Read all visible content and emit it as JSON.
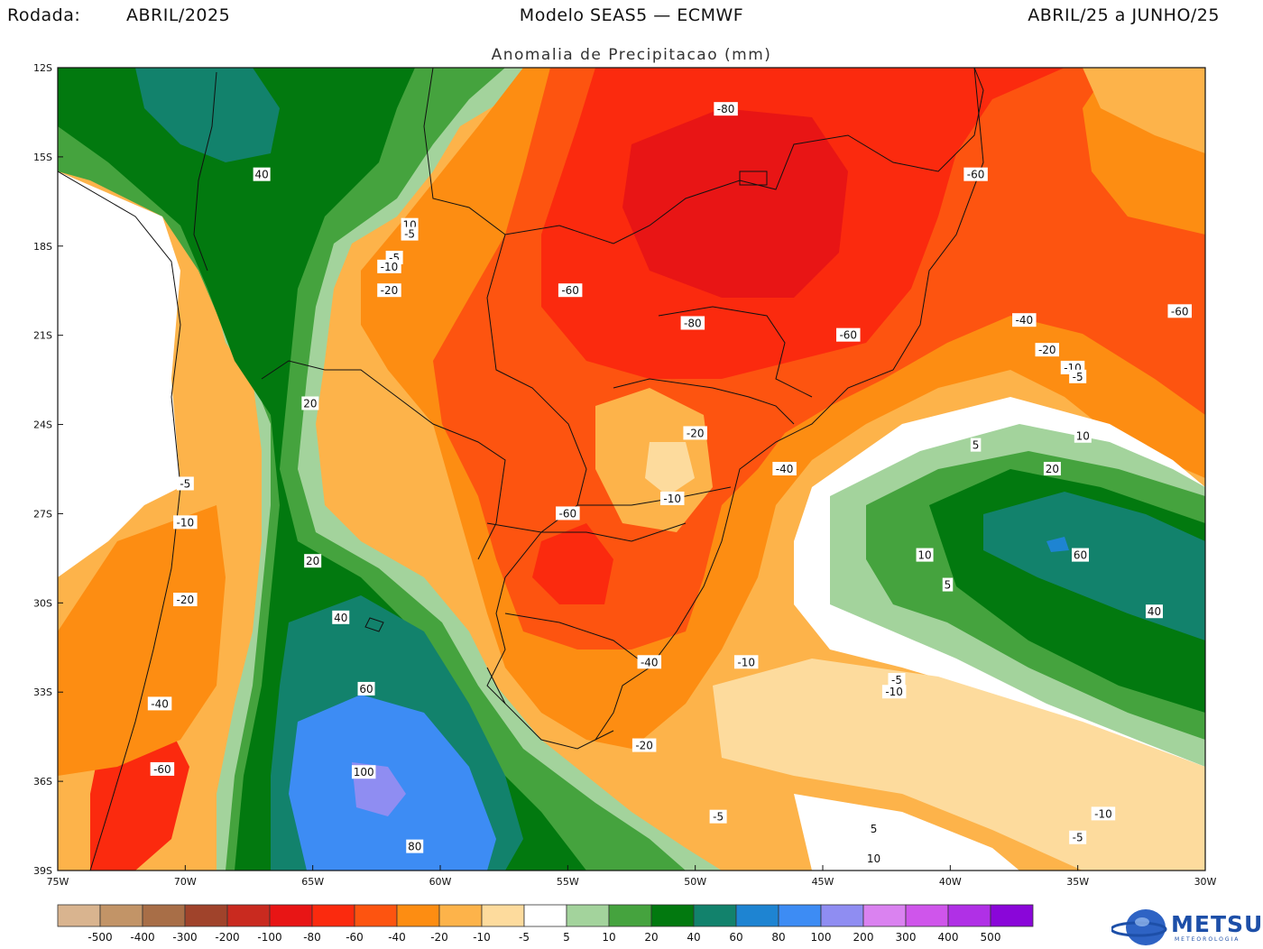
{
  "header": {
    "left_label": "Rodada:",
    "left_value": "ABRIL/2025",
    "center": "Modelo SEAS5 — ECMWF",
    "right": "ABRIL/25 a JUNHO/25",
    "subtitle": "Anomalia de Precipitacao (mm)"
  },
  "map": {
    "lon_range": [
      -75,
      -30
    ],
    "lat_range": [
      -39,
      -12
    ],
    "lon_ticks": [
      {
        "value": -75,
        "label": "75W"
      },
      {
        "value": -70,
        "label": "70W"
      },
      {
        "value": -65,
        "label": "65W"
      },
      {
        "value": -60,
        "label": "60W"
      },
      {
        "value": -55,
        "label": "55W"
      },
      {
        "value": -50,
        "label": "50W"
      },
      {
        "value": -45,
        "label": "45W"
      },
      {
        "value": -40,
        "label": "40W"
      },
      {
        "value": -35,
        "label": "35W"
      },
      {
        "value": -30,
        "label": "30W"
      }
    ],
    "lat_ticks": [
      {
        "value": -12,
        "label": "12S"
      },
      {
        "value": -15,
        "label": "15S"
      },
      {
        "value": -18,
        "label": "18S"
      },
      {
        "value": -21,
        "label": "21S"
      },
      {
        "value": -24,
        "label": "24S"
      },
      {
        "value": -27,
        "label": "27S"
      },
      {
        "value": -30,
        "label": "30S"
      },
      {
        "value": -33,
        "label": "33S"
      },
      {
        "value": -36,
        "label": "36S"
      },
      {
        "value": -39,
        "label": "39S"
      }
    ],
    "contour_labels": [
      {
        "text": "-80",
        "lon": -48.8,
        "lat": -13.4
      },
      {
        "text": "-60",
        "lon": -39.0,
        "lat": -15.6
      },
      {
        "text": "40",
        "lon": -67.0,
        "lat": -15.6
      },
      {
        "text": "10",
        "lon": -61.2,
        "lat": -17.3
      },
      {
        "text": "-5",
        "lon": -61.2,
        "lat": -17.6
      },
      {
        "text": "-5",
        "lon": -61.8,
        "lat": -18.4
      },
      {
        "text": "-10",
        "lon": -62.0,
        "lat": -18.7
      },
      {
        "text": "-20",
        "lon": -62.0,
        "lat": -19.5
      },
      {
        "text": "-60",
        "lon": -54.9,
        "lat": -19.5
      },
      {
        "text": "-80",
        "lon": -50.1,
        "lat": -20.6
      },
      {
        "text": "-60",
        "lon": -44.0,
        "lat": -21.0
      },
      {
        "text": "-40",
        "lon": -37.1,
        "lat": -20.5
      },
      {
        "text": "-60",
        "lon": -31.0,
        "lat": -20.2
      },
      {
        "text": "-20",
        "lon": -36.2,
        "lat": -21.5
      },
      {
        "text": "-10",
        "lon": -35.2,
        "lat": -22.1
      },
      {
        "text": "-5",
        "lon": -35.0,
        "lat": -22.4
      },
      {
        "text": "20",
        "lon": -65.1,
        "lat": -23.3
      },
      {
        "text": "-20",
        "lon": -50.0,
        "lat": -24.3
      },
      {
        "text": "10",
        "lon": -34.8,
        "lat": -24.4
      },
      {
        "text": "5",
        "lon": -39.0,
        "lat": -24.7
      },
      {
        "text": "-40",
        "lon": -46.5,
        "lat": -25.5
      },
      {
        "text": "20",
        "lon": -36.0,
        "lat": -25.5
      },
      {
        "text": "-5",
        "lon": -70.0,
        "lat": -26.0
      },
      {
        "text": "-10",
        "lon": -50.9,
        "lat": -26.5
      },
      {
        "text": "-60",
        "lon": -55.0,
        "lat": -27.0
      },
      {
        "text": "-10",
        "lon": -70.0,
        "lat": -27.3
      },
      {
        "text": "10",
        "lon": -41.0,
        "lat": -28.4
      },
      {
        "text": "60",
        "lon": -34.9,
        "lat": -28.4
      },
      {
        "text": "20",
        "lon": -65.0,
        "lat": -28.6
      },
      {
        "text": "5",
        "lon": -40.1,
        "lat": -29.4
      },
      {
        "text": "-20",
        "lon": -70.0,
        "lat": -29.9
      },
      {
        "text": "40",
        "lon": -63.9,
        "lat": -30.5
      },
      {
        "text": "40",
        "lon": -32.0,
        "lat": -30.3
      },
      {
        "text": "-40",
        "lon": -51.8,
        "lat": -32.0
      },
      {
        "text": "-10",
        "lon": -48.0,
        "lat": -32.0
      },
      {
        "text": "-5",
        "lon": -42.1,
        "lat": -32.6
      },
      {
        "text": "-10",
        "lon": -42.2,
        "lat": -33.0
      },
      {
        "text": "60",
        "lon": -62.9,
        "lat": -32.9
      },
      {
        "text": "-40",
        "lon": -71.0,
        "lat": -33.4
      },
      {
        "text": "-20",
        "lon": -52.0,
        "lat": -34.8
      },
      {
        "text": "100",
        "lon": -63.0,
        "lat": -35.7
      },
      {
        "text": "-60",
        "lon": -70.9,
        "lat": -35.6
      },
      {
        "text": "-5",
        "lon": -49.1,
        "lat": -37.2
      },
      {
        "text": "-10",
        "lon": -34.0,
        "lat": -37.1
      },
      {
        "text": "5",
        "lon": -43.0,
        "lat": -37.6
      },
      {
        "text": "-5",
        "lon": -35.0,
        "lat": -37.9
      },
      {
        "text": "80",
        "lon": -61.0,
        "lat": -38.2
      },
      {
        "text": "10",
        "lon": -43.0,
        "lat": -38.6
      }
    ]
  },
  "colorbar": {
    "colors": [
      "#d9b48f",
      "#c29467",
      "#a86e47",
      "#a0432b",
      "#c92a1f",
      "#e81515",
      "#fb2a0e",
      "#fd5410",
      "#fd8d12",
      "#fdb34a",
      "#fddb9d",
      "#ffffff",
      "#a3d39c",
      "#45a33e",
      "#02790f",
      "#12826c",
      "#1e84d2",
      "#3d8cf4",
      "#8f8df2",
      "#da82f0",
      "#cf55eb",
      "#b030e6",
      "#8a06d9"
    ],
    "labels": [
      "-500",
      "-400",
      "-300",
      "-200",
      "-100",
      "-80",
      "-60",
      "-40",
      "-20",
      "-10",
      "-5",
      "5",
      "10",
      "20",
      "40",
      "60",
      "80",
      "100",
      "200",
      "300",
      "400",
      "500"
    ]
  },
  "logo": {
    "text": "METSUL",
    "sub": "METEOROLOGIA"
  }
}
